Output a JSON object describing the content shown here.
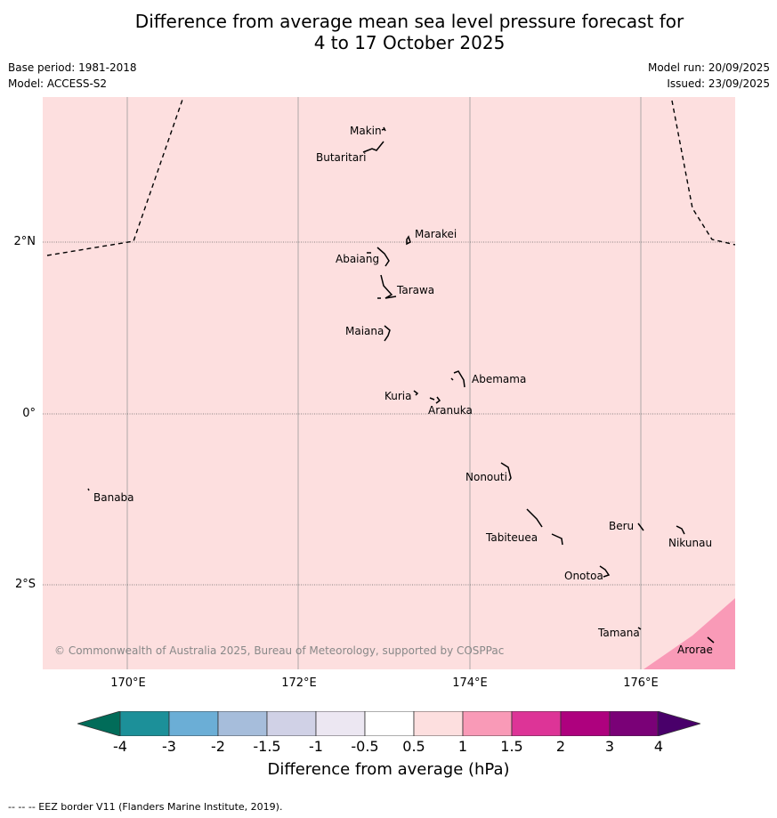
{
  "title_line1": "Difference from average mean sea level pressure forecast for",
  "title_line2": "4 to 17 October 2025",
  "base_period": "Base period: 1981-2018",
  "model": "Model: ACCESS-S2",
  "model_run": "Model run: 20/09/2025",
  "issued": "Issued: 23/09/2025",
  "copyright": "© Commonwealth of Australia 2025, Bureau of Meteorology, supported by COSPPac",
  "lat_labels": [
    "2°N",
    "0°",
    "2°S"
  ],
  "lon_labels": [
    "170°E",
    "172°E",
    "174°E",
    "176°E"
  ],
  "places": {
    "makin": "Makin",
    "butaritari": "Butaritari",
    "marakei": "Marakei",
    "abaiang": "Abaiang",
    "tarawa": "Tarawa",
    "maiana": "Maiana",
    "abemama": "Abemama",
    "kuria": "Kuria",
    "aranuka": "Aranuka",
    "banaba": "Banaba",
    "nonouti": "Nonouti",
    "tabiteuea": "Tabiteuea",
    "beru": "Beru",
    "nikunau": "Nikunau",
    "onotoa": "Onotoa",
    "tamana": "Tamana",
    "arorae": "Arorae"
  },
  "colors": {
    "background_field": "#fddfdf",
    "field_1_to_1_5": "#f99ab7",
    "grid": "#999999",
    "eez": "#000000"
  },
  "colorbar": {
    "label": "Difference from average (hPa)",
    "ticks": [
      "-4",
      "-3",
      "-2",
      "-1.5",
      "-1",
      "-0.5",
      "0.5",
      "1",
      "1.5",
      "2",
      "3",
      "4"
    ],
    "colors": [
      "#1c9099",
      "#6baed6",
      "#a6bddb",
      "#d0d1e6",
      "#ece7f2",
      "#ffffff",
      "#fddfdf",
      "#f99ab7",
      "#dd3497",
      "#ae017e",
      "#7a0177"
    ],
    "under_color": "#016c59",
    "over_color": "#49006a"
  },
  "footnote": "-- -- -- EEZ border V11 (Flanders Marine Institute, 2019)."
}
